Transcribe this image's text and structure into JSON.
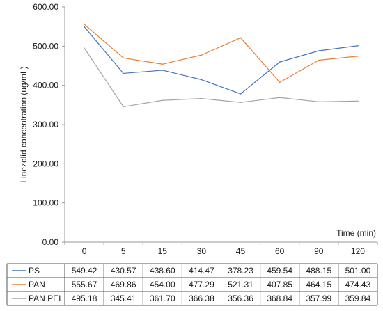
{
  "chart_data": {
    "type": "line",
    "ylabel": "Linezolid concentration (ug/mL)",
    "xlabel": "Time (min)",
    "categories": [
      "0",
      "5",
      "15",
      "30",
      "45",
      "60",
      "90",
      "120"
    ],
    "ylim": [
      0,
      600
    ],
    "yticks": [
      "0.00",
      "100.00",
      "200.00",
      "300.00",
      "400.00",
      "500.00",
      "600.00"
    ],
    "grid": false,
    "series": [
      {
        "name": "PS",
        "color": "#4472c4",
        "values": [
          549.42,
          430.57,
          438.6,
          414.47,
          378.23,
          459.54,
          488.15,
          501.0
        ],
        "labels": [
          "549.42",
          "430.57",
          "438.60",
          "414.47",
          "378.23",
          "459.54",
          "488.15",
          "501.00"
        ]
      },
      {
        "name": "PAN",
        "color": "#ed7d31",
        "values": [
          555.67,
          469.86,
          454.0,
          477.29,
          521.31,
          407.85,
          464.15,
          474.43
        ],
        "labels": [
          "555.67",
          "469.86",
          "454.00",
          "477.29",
          "521.31",
          "407.85",
          "464.15",
          "474.43"
        ]
      },
      {
        "name": "PAN PEI",
        "color": "#a5a5a5",
        "values": [
          495.18,
          345.41,
          361.7,
          366.38,
          356.36,
          368.84,
          357.99,
          359.84
        ],
        "labels": [
          "495.18",
          "345.41",
          "361.70",
          "366.38",
          "356.36",
          "368.84",
          "357.99",
          "359.84"
        ]
      }
    ],
    "legend": "data-table below the chart"
  }
}
